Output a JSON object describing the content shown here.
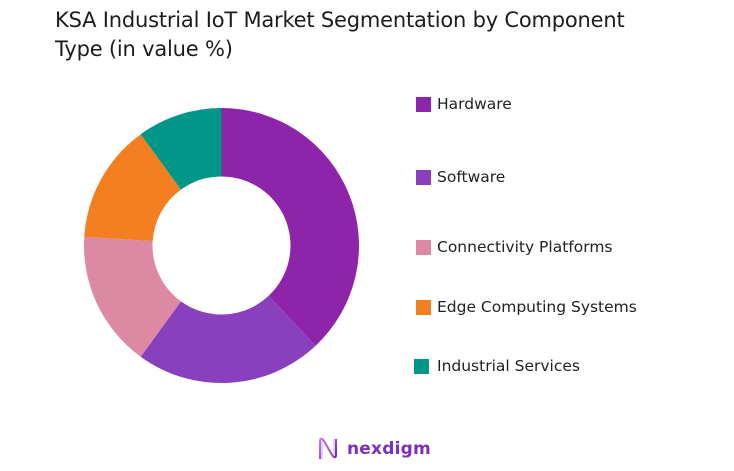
{
  "title": {
    "line1": "KSA Industrial IoT Market Segmentation by Component",
    "line2": "Type (in value %)"
  },
  "chart_data": {
    "type": "pie",
    "subtype": "donut",
    "title": "KSA Industrial IoT Market Segmentation by Component Type (in value %)",
    "categories": [
      "Hardware",
      "Software",
      "Connectivity Platforms",
      "Edge Computing Systems",
      "Industrial Services"
    ],
    "values": [
      38,
      22,
      16,
      14,
      10
    ],
    "colors": [
      "#8e24aa",
      "#8a3fbd",
      "#de89a4",
      "#f47f20",
      "#009688"
    ],
    "unit": "%",
    "legend_position": "right",
    "start_angle": "12 o'clock, clockwise"
  },
  "legend": {
    "items": [
      {
        "label": "Hardware",
        "color": "#8e24aa"
      },
      {
        "label": "Software",
        "color": "#8a3fbd"
      },
      {
        "label": "Connectivity Platforms",
        "color": "#de89a4"
      },
      {
        "label": "Edge Computing Systems",
        "color": "#f47f20"
      },
      {
        "label": "Industrial Services",
        "color": "#009688"
      }
    ]
  },
  "logo": {
    "text": "nexdigm",
    "icon": "nexdigm-wave-icon",
    "color": "#7b2fbf"
  }
}
